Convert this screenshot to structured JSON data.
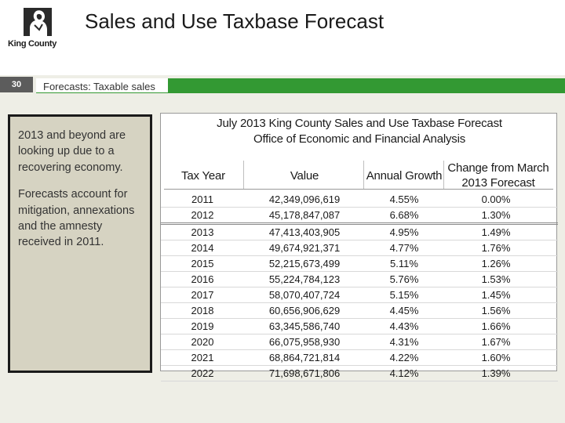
{
  "header": {
    "logo_text": "King County",
    "title": "Sales and Use Taxbase Forecast"
  },
  "subheader": {
    "slide_number": "30",
    "subtitle": "Forecasts:  Taxable sales"
  },
  "text_panel": {
    "paragraphs": [
      "2013 and beyond are looking up due to a recovering economy.",
      "Forecasts account for mitigation, annexations and the amnesty received in 2011."
    ]
  },
  "forecast_table": {
    "title_line1": "July 2013 King County Sales and Use Taxbase Forecast",
    "title_line2": "Office of Economic and Financial Analysis",
    "columns": [
      "Tax Year",
      "Value",
      "Annual Growth",
      "Change from March 2013 Forecast"
    ],
    "rows": [
      [
        "2011",
        "42,349,096,619",
        "4.55%",
        "0.00%"
      ],
      [
        "2012",
        "45,178,847,087",
        "6.68%",
        "1.30%"
      ],
      [
        "2013",
        "47,413,403,905",
        "4.95%",
        "1.49%"
      ],
      [
        "2014",
        "49,674,921,371",
        "4.77%",
        "1.76%"
      ],
      [
        "2015",
        "52,215,673,499",
        "5.11%",
        "1.26%"
      ],
      [
        "2016",
        "55,224,784,123",
        "5.76%",
        "1.53%"
      ],
      [
        "2017",
        "58,070,407,724",
        "5.15%",
        "1.45%"
      ],
      [
        "2018",
        "60,656,906,629",
        "4.45%",
        "1.56%"
      ],
      [
        "2019",
        "63,345,586,740",
        "4.43%",
        "1.66%"
      ],
      [
        "2020",
        "66,075,958,930",
        "4.31%",
        "1.67%"
      ],
      [
        "2021",
        "68,864,721,814",
        "4.22%",
        "1.60%"
      ],
      [
        "2022",
        "71,698,671,806",
        "4.12%",
        "1.39%"
      ]
    ]
  },
  "colors": {
    "accent_green": "#339933",
    "slide_background": "#eeeee6",
    "text_box_fill": "#d6d3c2"
  }
}
